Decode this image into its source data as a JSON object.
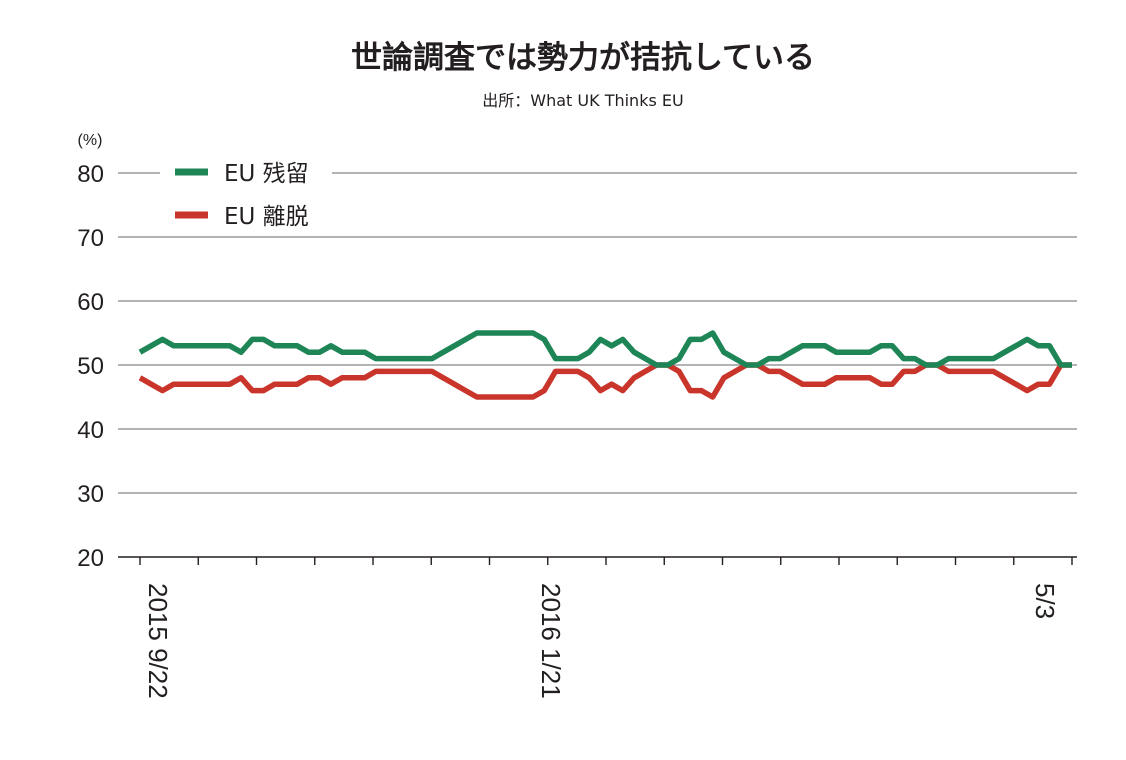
{
  "chart_data": {
    "type": "line",
    "title": "世論調査では勢力が拮抗している",
    "subtitle": "出所：What UK Thinks EU",
    "ylabel": "(%)",
    "ylim": [
      20,
      80
    ],
    "yticks": [
      "80",
      "70",
      "60",
      "50",
      "40",
      "30",
      "20"
    ],
    "grid": true,
    "legend": "top-left",
    "x_tick_labels": [
      {
        "label": "2015 9/22",
        "index": 0
      },
      {
        "label": "2016 1/21",
        "index": 35
      },
      {
        "label": "5/3",
        "index": 79
      }
    ],
    "series": [
      {
        "name": "EU 残留",
        "color": "#1e8557",
        "values": [
          52,
          53,
          54,
          53,
          53,
          53,
          53,
          53,
          53,
          52,
          54,
          54,
          53,
          53,
          53,
          52,
          52,
          53,
          52,
          52,
          52,
          51,
          51,
          51,
          51,
          51,
          51,
          52,
          53,
          54,
          55,
          55,
          55,
          55,
          55,
          55,
          54,
          51,
          51,
          51,
          52,
          54,
          53,
          54,
          52,
          51,
          50,
          50,
          51,
          54,
          54,
          55,
          52,
          51,
          50,
          50,
          51,
          51,
          52,
          53,
          53,
          53,
          52,
          52,
          52,
          52,
          53,
          53,
          51,
          51,
          50,
          50,
          51,
          51,
          51,
          51,
          51,
          52,
          53,
          54,
          53,
          53,
          50,
          50
        ]
      },
      {
        "name": "EU 離脱",
        "color": "#c9352b",
        "values": [
          48,
          47,
          46,
          47,
          47,
          47,
          47,
          47,
          47,
          48,
          46,
          46,
          47,
          47,
          47,
          48,
          48,
          47,
          48,
          48,
          48,
          49,
          49,
          49,
          49,
          49,
          49,
          48,
          47,
          46,
          45,
          45,
          45,
          45,
          45,
          45,
          46,
          49,
          49,
          49,
          48,
          46,
          47,
          46,
          48,
          49,
          50,
          50,
          49,
          46,
          46,
          45,
          48,
          49,
          50,
          50,
          49,
          49,
          48,
          47,
          47,
          47,
          48,
          48,
          48,
          48,
          47,
          47,
          49,
          49,
          50,
          50,
          49,
          49,
          49,
          49,
          49,
          48,
          47,
          46,
          47,
          47,
          50,
          50
        ]
      }
    ]
  }
}
